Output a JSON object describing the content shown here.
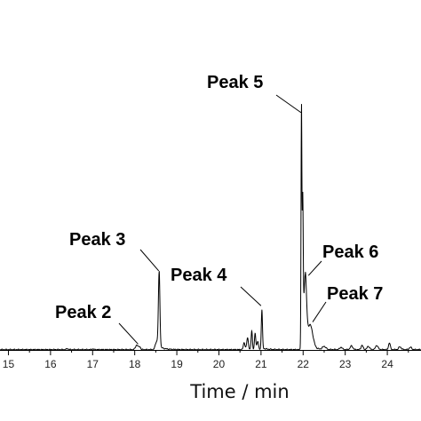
{
  "chart_data": {
    "type": "line",
    "title": "",
    "xlabel": "Time / min",
    "ylabel": "",
    "xlim": [
      14.8,
      24.8
    ],
    "ylim": [
      0,
      100
    ],
    "x_ticks": [
      15,
      16,
      17,
      18,
      19,
      20,
      21,
      22,
      23,
      24
    ],
    "grid": false,
    "series": [
      {
        "color": "#000000",
        "peaks": [
          {
            "x": 16.4,
            "y": 0.4,
            "w": 0.02
          },
          {
            "x": 17.0,
            "y": 0.3,
            "w": 0.02
          },
          {
            "x": 18.05,
            "y": 2.0,
            "w": 0.03
          },
          {
            "x": 18.12,
            "y": 1.2,
            "w": 0.02
          },
          {
            "x": 18.58,
            "y": 32.5,
            "w": 0.018
          },
          {
            "x": 18.52,
            "y": 3.5,
            "w": 0.03
          },
          {
            "x": 20.6,
            "y": 3.0,
            "w": 0.02
          },
          {
            "x": 20.68,
            "y": 5.0,
            "w": 0.02
          },
          {
            "x": 20.78,
            "y": 8.0,
            "w": 0.015
          },
          {
            "x": 20.86,
            "y": 7.0,
            "w": 0.015
          },
          {
            "x": 20.92,
            "y": 3.5,
            "w": 0.02
          },
          {
            "x": 21.02,
            "y": 16.5,
            "w": 0.014
          },
          {
            "x": 21.96,
            "y": 100,
            "w": 0.01
          },
          {
            "x": 21.99,
            "y": 58,
            "w": 0.012
          },
          {
            "x": 22.05,
            "y": 28,
            "w": 0.03
          },
          {
            "x": 22.17,
            "y": 9,
            "w": 0.06
          },
          {
            "x": 22.5,
            "y": 1.3,
            "w": 0.04
          },
          {
            "x": 22.9,
            "y": 1.0,
            "w": 0.03
          },
          {
            "x": 23.15,
            "y": 1.6,
            "w": 0.03
          },
          {
            "x": 23.4,
            "y": 1.8,
            "w": 0.025
          },
          {
            "x": 23.55,
            "y": 1.4,
            "w": 0.03
          },
          {
            "x": 23.75,
            "y": 1.8,
            "w": 0.03
          },
          {
            "x": 24.05,
            "y": 3.0,
            "w": 0.02
          },
          {
            "x": 24.3,
            "y": 1.2,
            "w": 0.03
          },
          {
            "x": 24.55,
            "y": 1.0,
            "w": 0.03
          }
        ]
      }
    ],
    "annotations": [
      {
        "text": "Peak 2",
        "target_x": 18.08,
        "target_y": 2.5
      },
      {
        "text": "Peak 3",
        "target_x": 18.57,
        "target_y": 34
      },
      {
        "text": "Peak 4",
        "target_x": 21.0,
        "target_y": 19
      },
      {
        "text": "Peak 5",
        "target_x": 21.95,
        "target_y": 102
      },
      {
        "text": "Peak 6",
        "target_x": 22.0,
        "target_y": 32
      },
      {
        "text": "Peak 7",
        "target_x": 22.1,
        "target_y": 12
      }
    ]
  }
}
